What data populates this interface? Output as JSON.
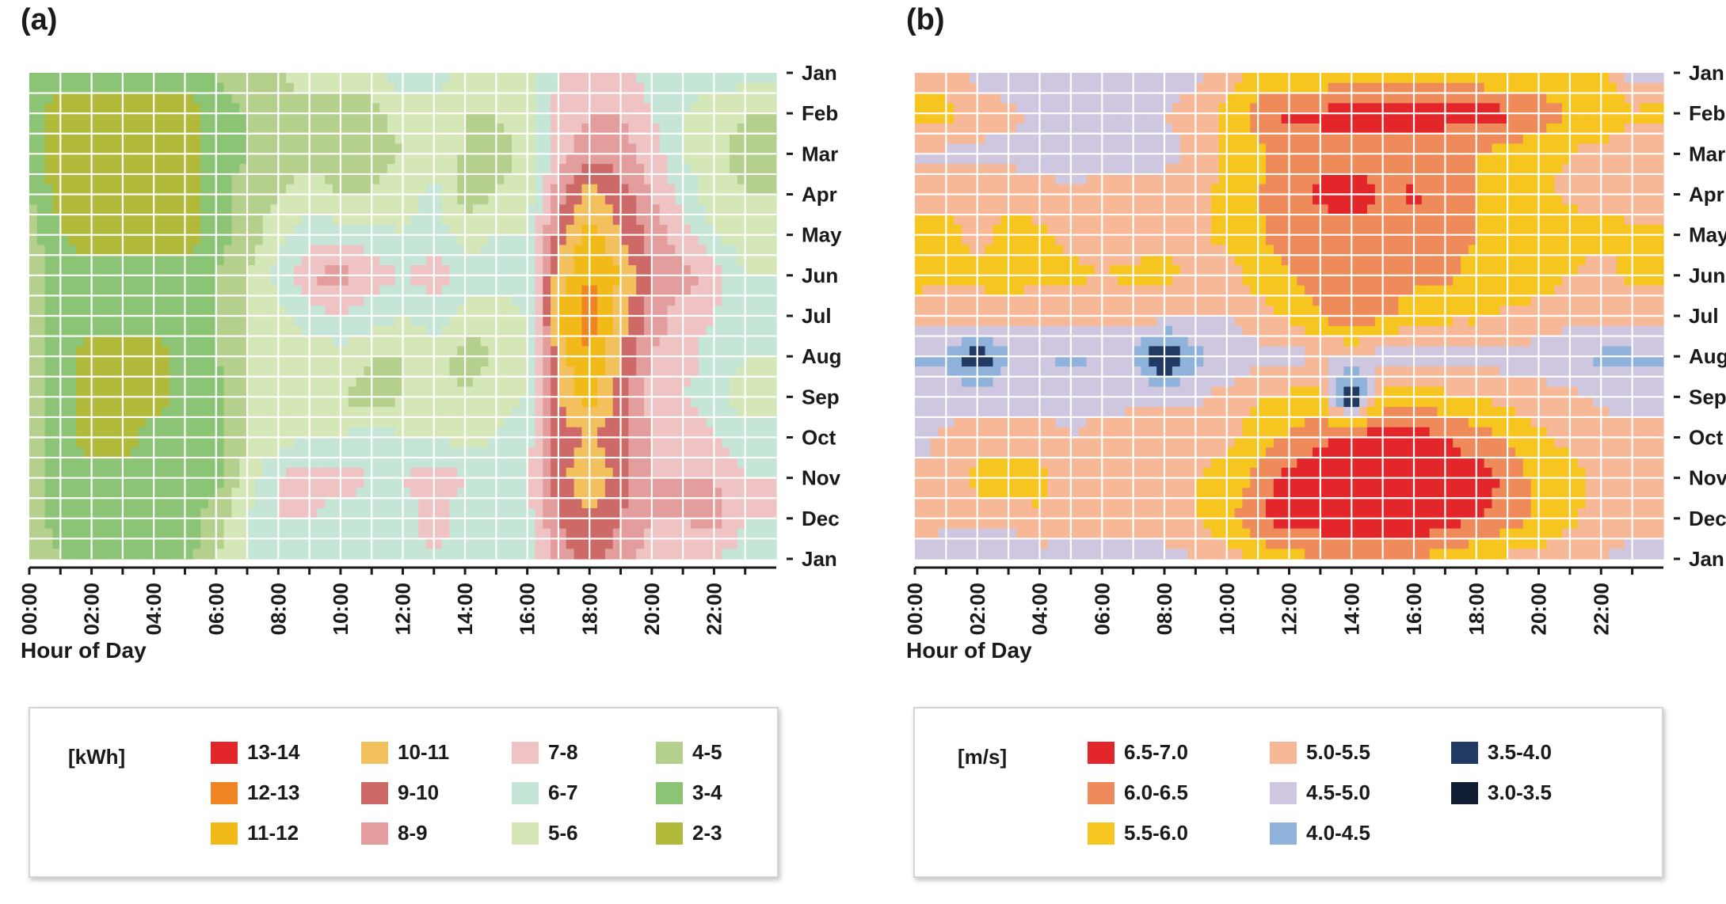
{
  "panels": {
    "a": {
      "label": "(a)"
    },
    "b": {
      "label": "(b)"
    }
  },
  "chart_data": [
    {
      "type": "heatmap",
      "panel": "(a)",
      "xlabel": "Hour of Day",
      "x_ticks": [
        "00:00",
        "02:00",
        "04:00",
        "06:00",
        "08:00",
        "10:00",
        "12:00",
        "14:00",
        "16:00",
        "18:00",
        "20:00",
        "22:00"
      ],
      "y_ticks": [
        "Jan",
        "Feb",
        "Mar",
        "Apr",
        "May",
        "Jun",
        "Jul",
        "Aug",
        "Sep",
        "Oct",
        "Nov",
        "Dec",
        "Jan"
      ],
      "grid": true,
      "unit": "[kWh]",
      "legend": [
        {
          "label": "13-14",
          "color": "#e3262a"
        },
        {
          "label": "12-13",
          "color": "#ef8523"
        },
        {
          "label": "11-12",
          "color": "#f2ba18"
        },
        {
          "label": "10-11",
          "color": "#f3c05e"
        },
        {
          "label": "9-10",
          "color": "#cd6a68"
        },
        {
          "label": "8-9",
          "color": "#e39d9c"
        },
        {
          "label": "7-8",
          "color": "#efc3c3"
        },
        {
          "label": "6-7",
          "color": "#c5e5d6"
        },
        {
          "label": "5-6",
          "color": "#d6e7b7"
        },
        {
          "label": "4-5",
          "color": "#b4d08c"
        },
        {
          "label": "3-4",
          "color": "#8bc475"
        },
        {
          "label": "2-3",
          "color": "#b1ba3b"
        }
      ],
      "hours": [
        0,
        1,
        2,
        3,
        4,
        5,
        6,
        7,
        8,
        9,
        10,
        11,
        12,
        13,
        14,
        15,
        16,
        17,
        18,
        19,
        20,
        21,
        22,
        23
      ],
      "months": [
        "Jan",
        "Feb",
        "Mar",
        "Apr",
        "May",
        "Jun",
        "Jul",
        "Aug",
        "Sep",
        "Oct",
        "Nov",
        "Dec",
        "Jan"
      ],
      "values": [
        [
          3.5,
          3.5,
          3.5,
          3.5,
          3.5,
          3.5,
          4,
          4.5,
          5,
          5.5,
          5.5,
          5.5,
          6.5,
          6.5,
          5.5,
          5,
          5.5,
          7,
          7.5,
          7.5,
          6.5,
          6.5,
          6.5,
          6.5
        ],
        [
          3.5,
          2.5,
          2.5,
          2.5,
          2.5,
          2.5,
          3.5,
          4,
          4.5,
          4.5,
          4.5,
          4.5,
          5.5,
          5.5,
          5,
          5,
          5.5,
          7.5,
          8,
          8,
          7,
          6,
          5.5,
          5
        ],
        [
          3.5,
          2.5,
          2.5,
          2.5,
          2.5,
          2.5,
          3.5,
          4,
          4.5,
          4.5,
          4.5,
          4.5,
          5,
          5,
          5,
          4.5,
          5.5,
          7.5,
          8.5,
          8.5,
          7.5,
          6,
          5.5,
          4.5
        ],
        [
          4,
          2.5,
          2.5,
          2.5,
          2.5,
          2.5,
          3.5,
          4.5,
          5,
          5.5,
          5,
          5,
          5.5,
          6.5,
          4.5,
          5,
          5.5,
          8.5,
          10.5,
          9.5,
          8,
          6.5,
          5.5,
          5
        ],
        [
          4.5,
          3,
          2.5,
          2.5,
          2.5,
          2.5,
          3.5,
          4.5,
          5.5,
          6.5,
          6.5,
          6.5,
          6,
          6.5,
          5.5,
          6,
          6,
          9.5,
          11.5,
          10,
          8.5,
          7.5,
          6,
          5.5
        ],
        [
          4.5,
          3.5,
          3.5,
          3.5,
          3.5,
          3.5,
          4,
          5,
          6.5,
          8,
          8.5,
          7.5,
          7,
          7.5,
          6.5,
          6.5,
          6.5,
          10.5,
          12,
          11,
          9,
          8.5,
          7.5,
          6
        ],
        [
          4.5,
          3.5,
          3.5,
          3.5,
          3.5,
          3.5,
          4,
          5,
          5.5,
          6.5,
          7,
          6.5,
          6,
          6.5,
          5.5,
          5.5,
          6,
          11,
          12.5,
          10.5,
          8.5,
          7.5,
          7,
          6
        ],
        [
          4.5,
          3.5,
          2.5,
          2.5,
          2.5,
          3.5,
          4,
          5,
          5,
          5.5,
          5.5,
          5,
          5,
          5.5,
          4.5,
          5,
          5.5,
          10.5,
          12,
          10,
          8,
          7.5,
          6.5,
          6
        ],
        [
          4.5,
          3.5,
          2.5,
          2.5,
          2.5,
          3.5,
          3.5,
          5,
          5,
          5.5,
          5,
          4.5,
          5,
          5.5,
          5,
          5.5,
          6,
          10,
          11.5,
          9.5,
          7.5,
          7,
          6.5,
          5.5
        ],
        [
          4.5,
          3.5,
          2.5,
          2.5,
          3.5,
          3.5,
          3.5,
          5,
          5.5,
          6,
          6,
          6.5,
          6,
          6,
          5.5,
          6,
          6.5,
          9.5,
          10,
          9.5,
          8,
          7.5,
          7,
          6.5
        ],
        [
          4.5,
          3.5,
          3.5,
          3.5,
          3.5,
          3.5,
          3.5,
          5.5,
          7,
          7.5,
          7.5,
          7,
          7,
          7.5,
          7,
          7,
          7,
          9.5,
          11,
          9.5,
          8,
          8,
          8,
          7
        ],
        [
          4.5,
          3.5,
          3.5,
          3.5,
          3.5,
          3.5,
          4.5,
          6,
          7,
          7,
          6.5,
          6.5,
          6.5,
          7.5,
          6.5,
          6.5,
          6.5,
          9,
          10,
          9,
          8,
          8,
          8.5,
          7
        ],
        [
          5,
          4,
          3.5,
          3.5,
          3.5,
          3.5,
          5,
          6,
          6.5,
          6.5,
          6.5,
          6.5,
          6.5,
          7,
          6.5,
          6.5,
          6.5,
          8.5,
          9.5,
          8.5,
          7.5,
          7,
          7,
          6.5
        ]
      ],
      "thresholds": [
        13,
        12,
        11,
        10,
        9,
        8,
        7,
        6,
        5,
        4,
        3,
        2
      ]
    },
    {
      "type": "heatmap",
      "panel": "(b)",
      "xlabel": "Hour of Day",
      "x_ticks": [
        "00:00",
        "02:00",
        "04:00",
        "06:00",
        "08:00",
        "10:00",
        "12:00",
        "14:00",
        "16:00",
        "18:00",
        "20:00",
        "22:00"
      ],
      "y_ticks": [
        "Jan",
        "Feb",
        "Mar",
        "Apr",
        "May",
        "Jun",
        "Jul",
        "Aug",
        "Sep",
        "Oct",
        "Nov",
        "Dec",
        "Jan"
      ],
      "grid": true,
      "unit": "[m/s]",
      "legend": [
        {
          "label": "6.5-7.0",
          "color": "#e3262a"
        },
        {
          "label": "6.0-6.5",
          "color": "#ef8a5a"
        },
        {
          "label": "5.5-6.0",
          "color": "#f7c51f"
        },
        {
          "label": "5.0-5.5",
          "color": "#f6b896"
        },
        {
          "label": "4.5-5.0",
          "color": "#cfc6e0"
        },
        {
          "label": "4.0-4.5",
          "color": "#8fb2db"
        },
        {
          "label": "3.5-4.0",
          "color": "#213a63"
        },
        {
          "label": "3.0-3.5",
          "color": "#101d33"
        }
      ],
      "hours": [
        0,
        1,
        2,
        3,
        4,
        5,
        6,
        7,
        8,
        9,
        10,
        11,
        12,
        13,
        14,
        15,
        16,
        17,
        18,
        19,
        20,
        21,
        22,
        23
      ],
      "months": [
        "Jan",
        "Feb",
        "Mar",
        "Apr",
        "May",
        "Jun",
        "Jul",
        "Aug",
        "Sep",
        "Oct",
        "Nov",
        "Dec",
        "Jan"
      ],
      "values": [
        [
          5.2,
          5.2,
          4.8,
          4.6,
          4.5,
          4.5,
          4.8,
          4.8,
          4.8,
          4.8,
          5.2,
          5.6,
          5.6,
          5.6,
          5.6,
          5.6,
          5.6,
          5.6,
          5.6,
          5.6,
          5.6,
          5.6,
          5.6,
          4.8
        ],
        [
          5.7,
          5.7,
          5.2,
          5.2,
          4.8,
          4.6,
          4.8,
          4.8,
          5,
          5.2,
          5.6,
          6.3,
          6.6,
          6.6,
          6.8,
          6.8,
          6.8,
          6.8,
          6.7,
          6.6,
          6.3,
          6,
          6,
          5.6
        ],
        [
          4.9,
          4.9,
          4.9,
          4.8,
          4.8,
          4.5,
          4.8,
          4.8,
          4.8,
          5.2,
          5.6,
          5.8,
          6.3,
          6.3,
          6.3,
          6.3,
          6.1,
          6,
          6,
          5.8,
          5.6,
          5.5,
          5.3,
          5.2
        ],
        [
          5.3,
          5.3,
          5.2,
          5.4,
          5.2,
          5.2,
          5.2,
          5.2,
          5.3,
          5.4,
          5.6,
          6,
          6.3,
          6.6,
          6.8,
          6.4,
          6.6,
          6.2,
          6,
          5.8,
          5.6,
          5.4,
          5.4,
          5.3
        ],
        [
          5.7,
          5.7,
          5.3,
          5.7,
          5.6,
          5.4,
          5.3,
          5.3,
          5.4,
          5.4,
          5.6,
          5.9,
          6.3,
          6.2,
          6.3,
          6.3,
          6.2,
          6.2,
          6,
          5.8,
          5.8,
          5.7,
          5.6,
          5.6
        ],
        [
          5.7,
          5.6,
          5.6,
          5.7,
          5.6,
          5.6,
          5.5,
          5.6,
          5.6,
          5.4,
          5.3,
          5.7,
          6,
          6.2,
          6.2,
          6.2,
          6.1,
          6.1,
          5.8,
          5.8,
          5.8,
          5.5,
          5.3,
          5.6
        ],
        [
          5.2,
          5.2,
          5.3,
          5.3,
          5.2,
          5.2,
          5.2,
          5.2,
          5.2,
          5,
          5,
          5.3,
          5.6,
          6,
          6.5,
          6.1,
          5.8,
          5.6,
          5.6,
          5.4,
          5.3,
          5.2,
          5.1,
          5.2
        ],
        [
          4.4,
          4.4,
          3.5,
          4.5,
          4.5,
          4.4,
          4.5,
          4.5,
          3.2,
          4.4,
          4.5,
          4.8,
          4.8,
          5,
          5,
          4.8,
          4.8,
          4.8,
          4.8,
          4.8,
          4.8,
          4.5,
          4.4,
          4.4
        ],
        [
          4.9,
          4.8,
          4.8,
          4.8,
          4.8,
          4.8,
          4.8,
          4.9,
          4.9,
          4.9,
          5.2,
          5.5,
          5.6,
          5.7,
          3.2,
          5.8,
          5.8,
          5.6,
          5.5,
          5.3,
          5.2,
          5.1,
          4.9,
          4.9
        ],
        [
          4.8,
          5.1,
          5.2,
          5.2,
          5.3,
          5,
          5.2,
          5.2,
          5.2,
          5.3,
          5.4,
          5.7,
          6.1,
          6.4,
          6.8,
          6.8,
          6.7,
          6.5,
          6.2,
          6,
          5.6,
          5.4,
          5.2,
          5.1
        ],
        [
          5.1,
          5.1,
          5.7,
          5.8,
          5.7,
          5.2,
          5.2,
          5.3,
          5.3,
          5.5,
          5.7,
          6.1,
          6.7,
          6.8,
          6.9,
          6.9,
          6.9,
          6.8,
          6.8,
          6.4,
          5.8,
          5.6,
          5.4,
          5.2
        ],
        [
          5.2,
          5.1,
          5.2,
          5.2,
          5.4,
          5.2,
          5.2,
          5.2,
          5.3,
          5.5,
          5.8,
          6.5,
          6.8,
          6.8,
          6.9,
          6.9,
          6.9,
          6.8,
          6.5,
          6.3,
          5.9,
          5.6,
          5.3,
          5.2
        ],
        [
          4.8,
          4.8,
          4.5,
          4.5,
          4.8,
          4.8,
          4.8,
          4.8,
          4.8,
          5,
          5.3,
          5.6,
          5.8,
          6,
          6.1,
          6,
          6,
          5.8,
          5.6,
          5.4,
          5.3,
          5.2,
          5,
          4.8
        ]
      ],
      "thresholds": [
        6.5,
        6.0,
        5.5,
        5.0,
        4.5,
        4.0,
        3.5,
        3.0
      ]
    }
  ]
}
